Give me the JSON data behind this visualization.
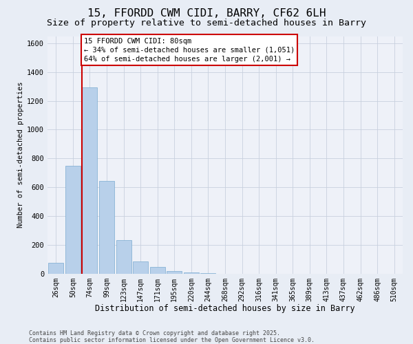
{
  "title1": "15, FFORDD CWM CIDI, BARRY, CF62 6LH",
  "title2": "Size of property relative to semi-detached houses in Barry",
  "xlabel": "Distribution of semi-detached houses by size in Barry",
  "ylabel": "Number of semi-detached properties",
  "categories": [
    "26sqm",
    "50sqm",
    "74sqm",
    "99sqm",
    "123sqm",
    "147sqm",
    "171sqm",
    "195sqm",
    "220sqm",
    "244sqm",
    "268sqm",
    "292sqm",
    "316sqm",
    "341sqm",
    "365sqm",
    "389sqm",
    "413sqm",
    "437sqm",
    "462sqm",
    "486sqm",
    "510sqm"
  ],
  "values": [
    75,
    750,
    1295,
    645,
    230,
    85,
    45,
    18,
    8,
    2,
    0,
    0,
    0,
    0,
    0,
    0,
    0,
    0,
    0,
    0,
    0
  ],
  "bar_color": "#b8d0ea",
  "bar_edge_color": "#7aaad0",
  "vline_color": "#cc0000",
  "vline_x": 1.55,
  "annotation_text": "15 FFORDD CWM CIDI: 80sqm\n← 34% of semi-detached houses are smaller (1,051)\n64% of semi-detached houses are larger (2,001) →",
  "annotation_box_facecolor": "#ffffff",
  "annotation_box_edgecolor": "#cc0000",
  "footer_line1": "Contains HM Land Registry data © Crown copyright and database right 2025.",
  "footer_line2": "Contains public sector information licensed under the Open Government Licence v3.0.",
  "ylim": [
    0,
    1650
  ],
  "yticks": [
    0,
    200,
    400,
    600,
    800,
    1000,
    1200,
    1400,
    1600
  ],
  "bg_color": "#e8edf5",
  "plot_bg_color": "#eef1f8",
  "grid_color": "#c8d0de",
  "title1_fontsize": 11.5,
  "title2_fontsize": 9.5,
  "xlabel_fontsize": 8.5,
  "ylabel_fontsize": 7.5,
  "tick_fontsize": 7,
  "annotation_fontsize": 7.5,
  "footer_fontsize": 6.0
}
